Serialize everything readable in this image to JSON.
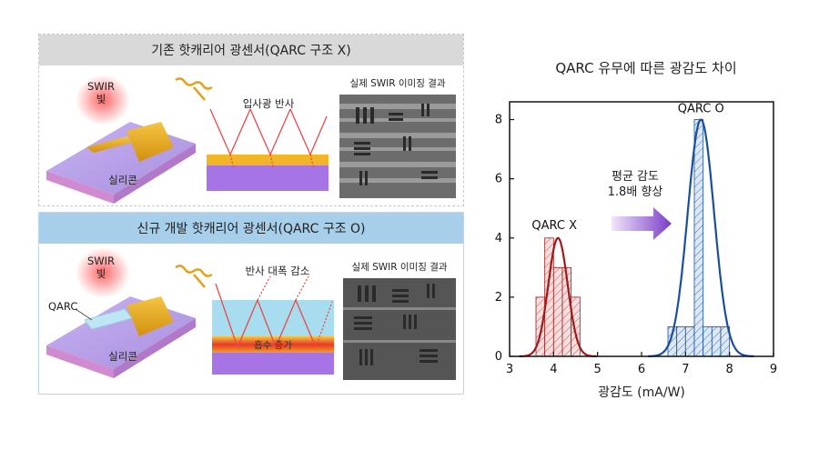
{
  "panel_top": {
    "title": "기존 핫캐리어 광센서(QARC 구조 X)",
    "swir_label": "SWIR\n빛",
    "silicon_label": "실리콘",
    "reflect_label": "입사광 반사",
    "imaging_label": "실제 SWIR 이미징 결과"
  },
  "panel_bottom": {
    "title": "신규 개발 핫캐리어 광센서(QARC 구조 O)",
    "swir_label": "SWIR\n빛",
    "qarc_label": "QARC",
    "silicon_label": "실리콘",
    "reflect_label": "반사 대폭 감소",
    "absorb_label": "흡수 증가",
    "imaging_label": "실제 SWIR 이미징 결과"
  },
  "colors": {
    "silicon_top": "#b9a0e6",
    "silicon_side": "#c58ad6",
    "gold": "#e0a520",
    "qarc_layer": "#a8dcef",
    "ray": "#e84a4a",
    "series_x": "#9e1b1b",
    "series_o": "#1a4f9c"
  },
  "chart_data": {
    "type": "bar",
    "title": "QARC 유무에 따른 광감도 차이",
    "xlabel": "광감도 (mA/W)",
    "ylabel": "",
    "xlim": [
      3,
      9
    ],
    "ylim": [
      0,
      8.6
    ],
    "xticks": [
      3,
      4,
      5,
      6,
      7,
      8,
      9
    ],
    "yticks": [
      0,
      2,
      4,
      6,
      8
    ],
    "bin_width": 0.2,
    "series": [
      {
        "name": "QARC X",
        "color": "#9e1b1b",
        "bins": [
          [
            3.6,
            2
          ],
          [
            3.8,
            4
          ],
          [
            4.0,
            3
          ],
          [
            4.2,
            3
          ],
          [
            4.4,
            2
          ]
        ],
        "fit": {
          "mean": 4.1,
          "sd": 0.22,
          "peak": 4
        }
      },
      {
        "name": "QARC O",
        "color": "#1a4f9c",
        "bins": [
          [
            6.6,
            1
          ],
          [
            6.8,
            1
          ],
          [
            7.0,
            1
          ],
          [
            7.2,
            8
          ],
          [
            7.4,
            1
          ],
          [
            7.6,
            1
          ],
          [
            7.8,
            1
          ]
        ],
        "fit": {
          "mean": 7.35,
          "sd": 0.3,
          "peak": 8
        }
      }
    ],
    "annotation": "평균 감도\n1.8배 향상"
  }
}
